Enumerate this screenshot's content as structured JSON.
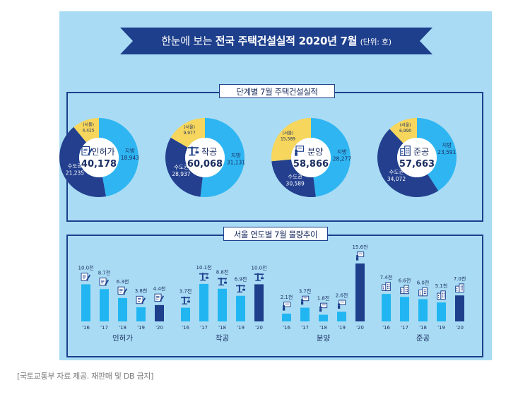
{
  "banner": {
    "lead": "한눈에 보는 ",
    "title": "전국 주택건설실적 2020년 7월",
    "unit": "(단위: 호)"
  },
  "panel_top_title": "단계별 7월 주택건설실적",
  "panel_bottom_title": "서울 연도별 7월 물량추이",
  "source": "[국토교통부 자료 제공. 재판매 및 DB 금지]",
  "colors": {
    "background": "#a9dcf4",
    "navy": "#1d3f8c",
    "local": "#2fb6f2",
    "metro": "#233f8e",
    "seoul": "#f6d65c",
    "bar_light": "#21b6f1",
    "bar_dark": "#1d3f8c"
  },
  "chart_data": [
    {
      "type": "pie",
      "center_label": "인허가",
      "total": "40,178",
      "icon": "permit-document-icon",
      "slices": [
        {
          "name": "지방",
          "value": 18943,
          "label": "18,943"
        },
        {
          "name": "수도권",
          "value": 21235,
          "label": "21,235"
        },
        {
          "name": "(서울)",
          "value": 4425,
          "label": "4,425"
        }
      ]
    },
    {
      "type": "pie",
      "center_label": "착공",
      "total": "60,068",
      "icon": "crane-icon",
      "slices": [
        {
          "name": "지방",
          "value": 31131,
          "label": "31,131"
        },
        {
          "name": "수도권",
          "value": 28937,
          "label": "28,937"
        },
        {
          "name": "(서울)",
          "value": 9977,
          "label": "9,977"
        }
      ]
    },
    {
      "type": "pie",
      "center_label": "분양",
      "total": "58,866",
      "icon": "sale-board-icon",
      "slices": [
        {
          "name": "지방",
          "value": 28277,
          "label": "28,277"
        },
        {
          "name": "수도권",
          "value": 30589,
          "label": "30,589"
        },
        {
          "name": "(서울)",
          "value": 15589,
          "label": "15,589"
        }
      ]
    },
    {
      "type": "pie",
      "center_label": "준공",
      "total": "57,663",
      "icon": "building-icon",
      "slices": [
        {
          "name": "지방",
          "value": 23591,
          "label": "23,591"
        },
        {
          "name": "수도권",
          "value": 34072,
          "label": "34,072"
        },
        {
          "name": "(서울)",
          "value": 6990,
          "label": "6,990"
        }
      ]
    },
    {
      "type": "bar",
      "groups": [
        {
          "name": "인허가",
          "icon": "permit-document-icon",
          "categories": [
            "'16",
            "'17",
            "'18",
            "'19",
            "'20"
          ],
          "values": [
            10.0,
            8.7,
            6.3,
            3.8,
            4.4
          ],
          "labels": [
            "10.0천",
            "8.7천",
            "6.3천",
            "3.8천",
            "4.4천"
          ]
        },
        {
          "name": "착공",
          "icon": "crane-icon",
          "categories": [
            "'16",
            "'17",
            "'18",
            "'19",
            "'20"
          ],
          "values": [
            3.7,
            10.1,
            8.8,
            6.9,
            10.0
          ],
          "labels": [
            "3.7천",
            "10.1천",
            "8.8천",
            "6.9천",
            "10.0천"
          ]
        },
        {
          "name": "분양",
          "icon": "sale-board-icon",
          "categories": [
            "'16",
            "'17",
            "'18",
            "'19",
            "'20"
          ],
          "values": [
            2.1,
            3.7,
            1.8,
            2.6,
            15.6
          ],
          "labels": [
            "2.1천",
            "3.7천",
            "1.8천",
            "2.6천",
            "15.6천"
          ]
        },
        {
          "name": "준공",
          "icon": "building-icon",
          "categories": [
            "'16",
            "'17",
            "'18",
            "'19",
            "'20"
          ],
          "values": [
            7.4,
            6.6,
            6.0,
            5.1,
            7.0
          ],
          "labels": [
            "7.4천",
            "6.6천",
            "6.0천",
            "5.1천",
            "7.0천"
          ]
        }
      ]
    }
  ]
}
